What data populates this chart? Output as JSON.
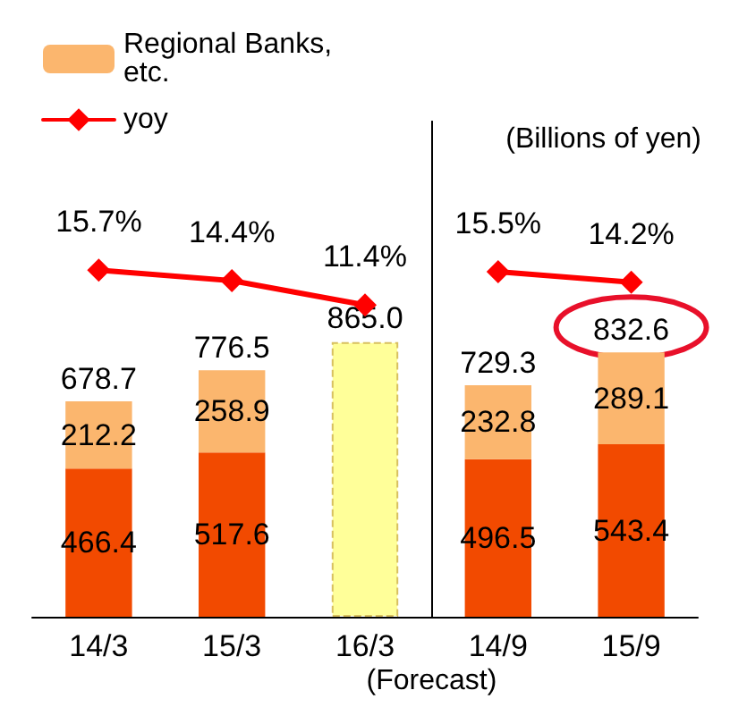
{
  "chart_data": {
    "type": "bar",
    "stacked": true,
    "categories": [
      "14/3",
      "15/3",
      "16/3",
      "14/9",
      "15/9"
    ],
    "series": [
      {
        "color": "#f24a00",
        "values": [
          466.4,
          517.6,
          null,
          496.5,
          543.4
        ]
      },
      {
        "name": "Regional Banks, etc.",
        "color": "#fbb66e",
        "values": [
          212.2,
          258.9,
          null,
          232.8,
          289.1
        ]
      },
      {
        "color": "#ffff99",
        "values": [
          null,
          null,
          865.0,
          null,
          null
        ],
        "value_labels": [
          null,
          null,
          "865.0",
          null,
          null
        ]
      },
      {
        "name": "yoy",
        "type": "line",
        "axis": "y2",
        "color": "#ff0000",
        "values": [
          15.7,
          14.4,
          11.4,
          null,
          null
        ],
        "value_labels": [
          "15.7%",
          "14.4%",
          "11.4%",
          null,
          null
        ]
      },
      {
        "type": "line",
        "axis": "y2",
        "color": "#ff0000",
        "values": [
          null,
          null,
          null,
          15.5,
          14.2
        ],
        "value_labels": [
          null,
          null,
          null,
          "15.5%",
          "14.2%"
        ]
      }
    ],
    "totals": [
      "678.7",
      "776.5",
      null,
      "729.3",
      "832.6"
    ],
    "ylim": [
      0,
      1560
    ],
    "y2lim": [
      -27,
      34
    ],
    "data_labels": true,
    "marker": "diamond",
    "legend": "top",
    "annotations": [
      "(Forecast)",
      "(Billions of yen)"
    ]
  }
}
